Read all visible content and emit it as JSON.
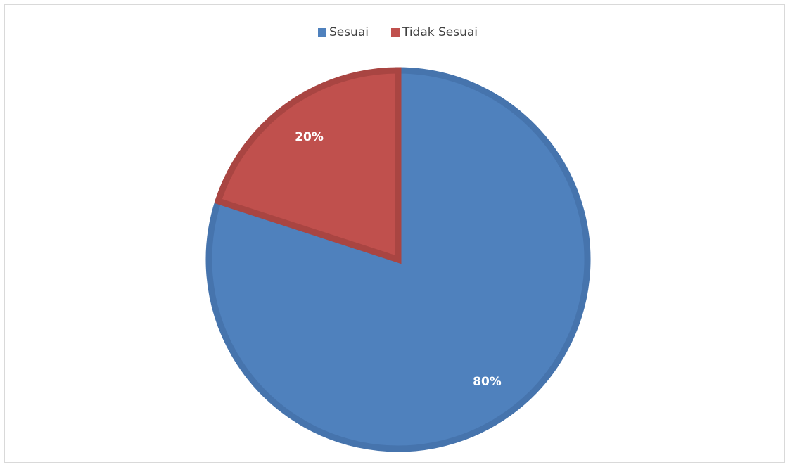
{
  "chart_data": {
    "type": "pie",
    "title": "",
    "legend_position": "top",
    "categories": [
      "Sesuai",
      "Tidak Sesuai"
    ],
    "values": [
      80,
      20
    ],
    "data_labels": [
      "80%",
      "20%"
    ],
    "colors": [
      "#4f81bd",
      "#c0504d"
    ],
    "border_colors": [
      "#4674ad",
      "#a94542"
    ]
  }
}
